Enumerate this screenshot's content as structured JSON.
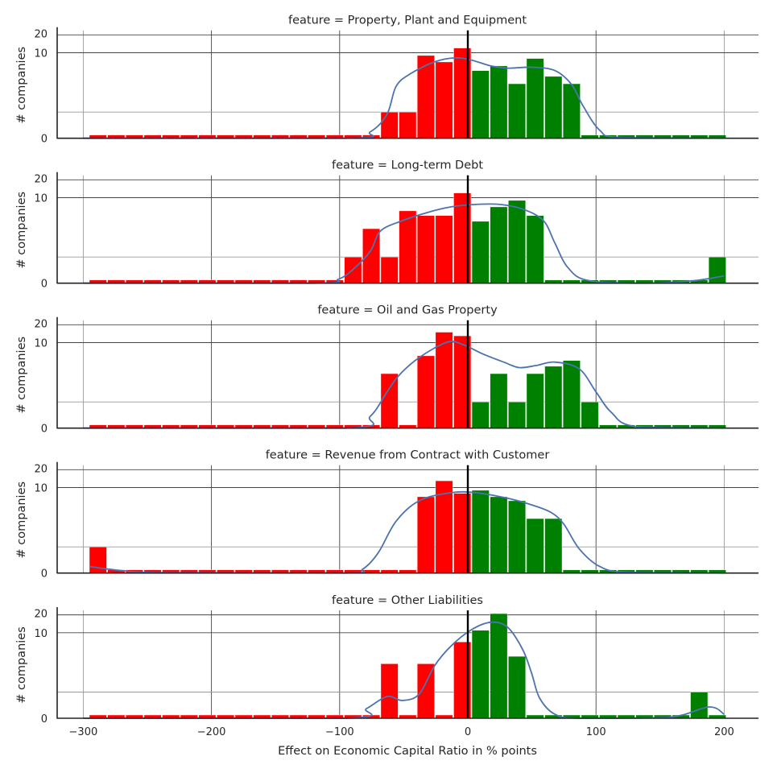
{
  "chart_data": {
    "type": "bar",
    "subtype": "faceted histogram with KDE (symlog y-axis)",
    "xlabel": "Effect on Economic Capital Ratio in % points",
    "ylabel": "# companies",
    "xlim": [
      -320,
      228
    ],
    "x_ticks": [
      -300,
      -200,
      -100,
      0,
      100,
      200
    ],
    "x_tick_labels": [
      "−300",
      "−200",
      "−100",
      "0",
      "100",
      "200"
    ],
    "y_ticks": [
      0,
      10,
      20
    ],
    "y_tick_labels": [
      "0",
      "10",
      "20"
    ],
    "y_gridlines": [
      0,
      1,
      10,
      20
    ],
    "y_scale": "symlog",
    "grid": true,
    "reference_line_x": 0,
    "bins": {
      "start": -295.6,
      "width": 14.21,
      "count": 35
    },
    "colors": {
      "negative": "#ff0000",
      "positive": "#008000",
      "kde": "#4c72b0",
      "zero_line": "#000000"
    },
    "panels": [
      {
        "title": "feature = Property, Plant and Equipment",
        "counts": [
          0,
          0,
          0,
          0,
          0,
          0,
          0,
          0,
          0,
          0,
          0,
          0,
          0,
          0,
          0,
          0,
          1,
          1,
          9,
          7,
          12,
          5,
          6,
          3,
          8,
          4,
          3,
          0,
          0,
          0,
          0,
          0,
          0,
          0,
          0
        ],
        "kde": [
          [
            -300,
            0
          ],
          [
            -95,
            0
          ],
          [
            -76,
            0.25
          ],
          [
            -63,
            0.92
          ],
          [
            -56,
            2.7
          ],
          [
            -45,
            4.4
          ],
          [
            -26,
            7.0
          ],
          [
            -10,
            8.2
          ],
          [
            3,
            7.5
          ],
          [
            18,
            6.0
          ],
          [
            31,
            5.5
          ],
          [
            50,
            5.7
          ],
          [
            68,
            5.0
          ],
          [
            81,
            2.9
          ],
          [
            90,
            1.26
          ],
          [
            103,
            0.3
          ],
          [
            119,
            0.03
          ],
          [
            200,
            0
          ]
        ]
      },
      {
        "title": "feature = Long-term Debt",
        "counts": [
          0,
          0,
          0,
          0,
          0,
          0,
          0,
          0,
          0,
          0,
          0,
          0,
          0,
          0,
          1,
          3,
          1,
          6,
          5,
          5,
          12,
          4,
          7,
          9,
          5,
          0,
          0,
          0,
          0,
          0,
          0,
          0,
          0,
          0,
          1
        ],
        "kde": [
          [
            -300,
            0
          ],
          [
            -120,
            0
          ],
          [
            -101,
            0.15
          ],
          [
            -89,
            0.55
          ],
          [
            -76,
            1.26
          ],
          [
            -68,
            2.76
          ],
          [
            -51,
            4.1
          ],
          [
            -32,
            5.6
          ],
          [
            -13,
            7.0
          ],
          [
            6,
            7.7
          ],
          [
            25,
            7.7
          ],
          [
            43,
            6.4
          ],
          [
            59,
            4.1
          ],
          [
            68,
            1.7
          ],
          [
            78,
            0.6
          ],
          [
            94,
            0.1
          ],
          [
            138,
            0
          ],
          [
            175,
            0.09
          ],
          [
            200,
            0.28
          ]
        ]
      },
      {
        "title": "feature = Oil and Gas Property",
        "counts": [
          0,
          0,
          0,
          0,
          0,
          0,
          0,
          0,
          0,
          0,
          0,
          0,
          0,
          0,
          0,
          0,
          3,
          0,
          6,
          15,
          13,
          1,
          3,
          1,
          3,
          4,
          5,
          1,
          0,
          0,
          0,
          0,
          0,
          0,
          0
        ],
        "kde": [
          [
            -300,
            0
          ],
          [
            -95,
            0
          ],
          [
            -76,
            0.46
          ],
          [
            -63,
            1.48
          ],
          [
            -54,
            2.76
          ],
          [
            -38,
            5.6
          ],
          [
            -16,
            10.2
          ],
          [
            -4,
            9.3
          ],
          [
            12,
            6.4
          ],
          [
            28,
            4.7
          ],
          [
            40,
            3.8
          ],
          [
            53,
            4.1
          ],
          [
            68,
            4.7
          ],
          [
            87,
            3.6
          ],
          [
            100,
            1.48
          ],
          [
            112,
            0.6
          ],
          [
            131,
            0.06
          ],
          [
            200,
            0
          ]
        ]
      },
      {
        "title": "feature = Revenue from Contract with Customer",
        "counts": [
          1,
          0,
          0,
          0,
          0,
          0,
          0,
          0,
          0,
          0,
          0,
          0,
          0,
          0,
          0,
          0,
          0,
          0,
          7,
          13,
          8,
          9,
          7,
          6,
          3,
          3,
          0,
          0,
          0,
          0,
          0,
          0,
          0,
          0,
          0
        ],
        "kde": [
          [
            -295,
            0.25
          ],
          [
            -271,
            0.1
          ],
          [
            -239,
            0.02
          ],
          [
            -95,
            0
          ],
          [
            -82,
            0.15
          ],
          [
            -70,
            0.77
          ],
          [
            -56,
            2.7
          ],
          [
            -38,
            6.0
          ],
          [
            -13,
            8.2
          ],
          [
            6,
            8.2
          ],
          [
            31,
            6.6
          ],
          [
            50,
            5.1
          ],
          [
            65,
            3.8
          ],
          [
            75,
            2.4
          ],
          [
            87,
            0.92
          ],
          [
            103,
            0.25
          ],
          [
            125,
            0.03
          ],
          [
            200,
            0
          ]
        ]
      },
      {
        "title": "feature = Other Liabilities",
        "counts": [
          0,
          0,
          0,
          0,
          0,
          0,
          0,
          0,
          0,
          0,
          0,
          0,
          0,
          0,
          0,
          0,
          3,
          0,
          3,
          0,
          7,
          11,
          21,
          4,
          0,
          0,
          0,
          0,
          0,
          0,
          0,
          0,
          0,
          1,
          0
        ],
        "kde": [
          [
            -300,
            0
          ],
          [
            -95,
            0
          ],
          [
            -79,
            0.37
          ],
          [
            -63,
            0.83
          ],
          [
            -51,
            0.68
          ],
          [
            -38,
            0.92
          ],
          [
            -26,
            2.76
          ],
          [
            -13,
            6.0
          ],
          [
            3,
            11.3
          ],
          [
            18,
            15
          ],
          [
            31,
            12.4
          ],
          [
            43,
            5.1
          ],
          [
            50,
            2.0
          ],
          [
            56,
            0.77
          ],
          [
            68,
            0.15
          ],
          [
            87,
            0
          ],
          [
            156,
            0.03
          ],
          [
            188,
            0.43
          ],
          [
            200,
            0.15
          ]
        ]
      }
    ]
  }
}
